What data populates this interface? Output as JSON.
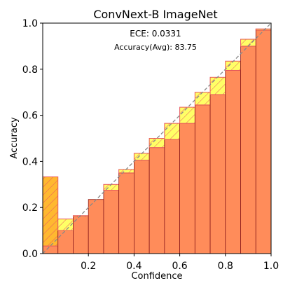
{
  "chart_data": {
    "type": "bar",
    "title": "ConvNext-B  ImageNet",
    "xlabel": "Confidence",
    "ylabel": "Accuracy",
    "xlim": [
      0,
      1
    ],
    "ylim": [
      0,
      1
    ],
    "xticks": [
      "0.2",
      "0.4",
      "0.6",
      "0.8",
      "1.0"
    ],
    "yticks": [
      "0.0",
      "0.2",
      "0.4",
      "0.6",
      "0.8",
      "1.0"
    ],
    "bin_width": 0.0667,
    "bins": [
      0.0,
      0.0667,
      0.1333,
      0.2,
      0.2667,
      0.3333,
      0.4,
      0.4667,
      0.5333,
      0.6,
      0.6667,
      0.7333,
      0.8,
      0.8667,
      0.9333
    ],
    "series": [
      {
        "name": "",
        "values": [
          0.333,
          0.1,
          0.16,
          0.235,
          0.275,
          0.35,
          0.405,
          0.46,
          0.495,
          0.565,
          0.645,
          0.69,
          0.795,
          0.9,
          0.97
        ]
      },
      {
        "name": "",
        "values": [
          0.033,
          0.15,
          0.165,
          0.235,
          0.3,
          0.365,
          0.435,
          0.5,
          0.565,
          0.635,
          0.7,
          0.765,
          0.835,
          0.93,
          0.975
        ]
      }
    ],
    "annotations": [
      "ECE: 0.0331",
      "Accuracy(Avg): 83.75"
    ],
    "colors": {
      "accuracy_bar": "#FF8C5A",
      "gap_over": "#FFFF66",
      "gap_under": "#FFB830",
      "hatch": "#E8585E",
      "diagonal": "#888888"
    },
    "grid": false
  }
}
